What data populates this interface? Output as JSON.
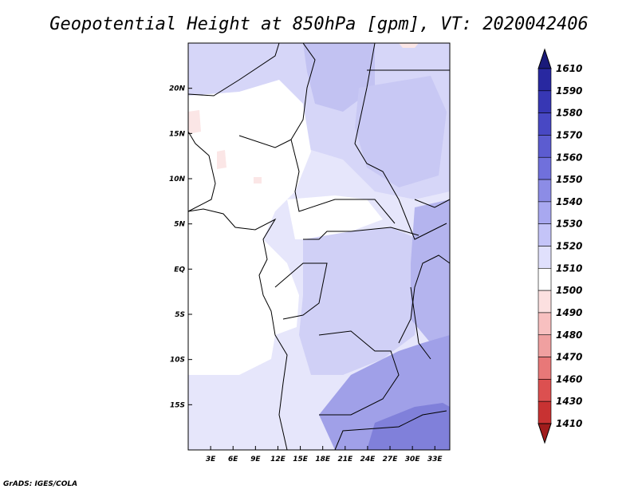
{
  "title": "Geopotential Height at 850hPa [gpm], VT: 2020042406",
  "credit": "GrADS: IGES/COLA",
  "map": {
    "lon_range": [
      0,
      35
    ],
    "lat_range": [
      -20,
      25
    ],
    "lon_ticks": [
      {
        "value": 3,
        "label": "3E"
      },
      {
        "value": 6,
        "label": "6E"
      },
      {
        "value": 9,
        "label": "9E"
      },
      {
        "value": 12,
        "label": "12E"
      },
      {
        "value": 15,
        "label": "15E"
      },
      {
        "value": 18,
        "label": "18E"
      },
      {
        "value": 21,
        "label": "21E"
      },
      {
        "value": 24,
        "label": "24E"
      },
      {
        "value": 27,
        "label": "27E"
      },
      {
        "value": 30,
        "label": "30E"
      },
      {
        "value": 33,
        "label": "33E"
      }
    ],
    "lat_ticks": [
      {
        "value": 20,
        "label": "20N"
      },
      {
        "value": 15,
        "label": "15N"
      },
      {
        "value": 10,
        "label": "10N"
      },
      {
        "value": 5,
        "label": "5N"
      },
      {
        "value": 0,
        "label": "EQ"
      },
      {
        "value": -5,
        "label": "5S"
      },
      {
        "value": -10,
        "label": "10S"
      },
      {
        "value": -15,
        "label": "15S"
      }
    ]
  },
  "colorbar": {
    "levels": [
      "1610",
      "1590",
      "1580",
      "1570",
      "1560",
      "1550",
      "1540",
      "1530",
      "1520",
      "1510",
      "1500",
      "1490",
      "1480",
      "1470",
      "1460",
      "1430",
      "1410"
    ],
    "colors": [
      "#1a1a7a",
      "#2828a0",
      "#3737b4",
      "#4848c4",
      "#5c5cd0",
      "#7070dc",
      "#8c8ce6",
      "#a8a8f0",
      "#c4c4f8",
      "#e0e0fc",
      "#ffffff",
      "#fce0e0",
      "#f8c0c0",
      "#f0a0a0",
      "#e87878",
      "#dc5050",
      "#c83232",
      "#a01c1c"
    ]
  }
}
